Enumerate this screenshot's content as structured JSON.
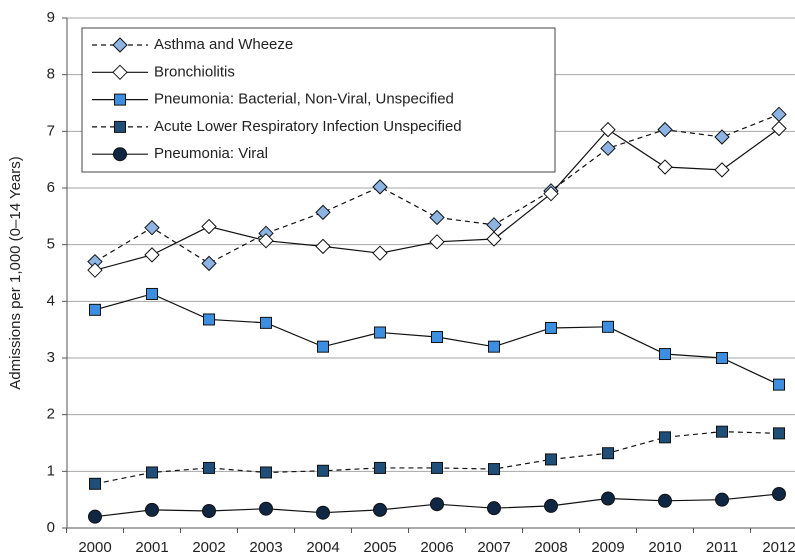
{
  "chart_data": {
    "type": "line",
    "y_label": "Admissions per 1,000 (0–14 Years)",
    "categories": [
      "2000",
      "2001",
      "2002",
      "2003",
      "2004",
      "2005",
      "2006",
      "2007",
      "2008",
      "2009",
      "2010",
      "2011",
      "2012"
    ],
    "series": [
      {
        "name": "Asthma and Wheeze",
        "color": "#8db4e2",
        "dashed": true,
        "marker": "diamond",
        "values": [
          4.7,
          5.3,
          4.67,
          5.2,
          5.57,
          6.02,
          5.48,
          5.35,
          5.95,
          6.7,
          7.03,
          6.9,
          7.3
        ]
      },
      {
        "name": "Bronchiolitis",
        "color": "#ffffff",
        "dashed": false,
        "marker": "diamond",
        "values": [
          4.55,
          4.82,
          5.32,
          5.07,
          4.97,
          4.85,
          5.05,
          5.1,
          5.9,
          7.03,
          6.37,
          6.32,
          7.05
        ]
      },
      {
        "name": "Pneumonia: Bacterial, Non-Viral, Unspecified",
        "color": "#3c8fe0",
        "dashed": false,
        "marker": "square",
        "values": [
          3.85,
          4.13,
          3.68,
          3.62,
          3.2,
          3.45,
          3.37,
          3.2,
          3.53,
          3.55,
          3.07,
          3.0,
          2.53
        ]
      },
      {
        "name": "Acute Lower Respiratory Infection Unspecified",
        "color": "#1f4e79",
        "dashed": true,
        "marker": "square",
        "values": [
          0.78,
          0.98,
          1.06,
          0.98,
          1.01,
          1.06,
          1.06,
          1.04,
          1.21,
          1.32,
          1.6,
          1.7,
          1.67
        ]
      },
      {
        "name": "Pneumonia: Viral",
        "color": "#0f2742",
        "dashed": false,
        "marker": "circle",
        "values": [
          0.2,
          0.32,
          0.3,
          0.34,
          0.27,
          0.32,
          0.42,
          0.35,
          0.39,
          0.52,
          0.48,
          0.5,
          0.6
        ]
      }
    ],
    "ylim": [
      0,
      9
    ],
    "yticks": [
      0,
      1,
      2,
      3,
      4,
      5,
      6,
      7,
      8,
      9
    ],
    "grid": true,
    "legend": "top-left"
  }
}
